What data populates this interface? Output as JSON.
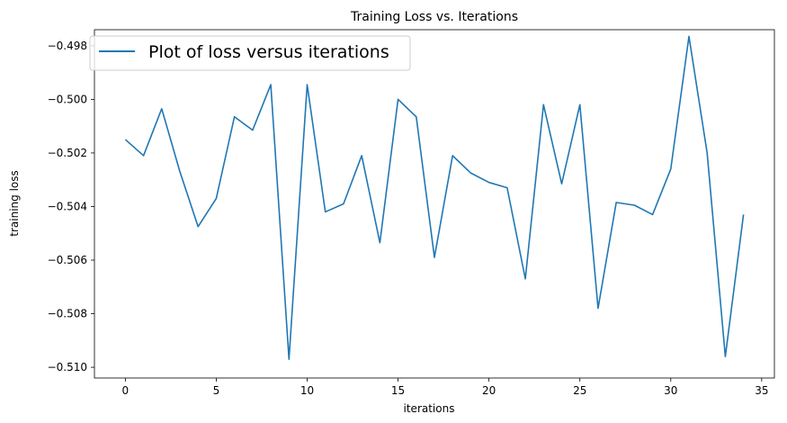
{
  "chart_data": {
    "type": "line",
    "title": "Training Loss vs. Iterations",
    "xlabel": "iterations",
    "ylabel": "training loss",
    "xlim": [
      -1.7,
      35.7
    ],
    "ylim": [
      -0.5104,
      -0.4974
    ],
    "xticks": [
      0,
      5,
      10,
      15,
      20,
      25,
      30,
      35
    ],
    "xtick_labels": [
      "0",
      "5",
      "10",
      "15",
      "20",
      "25",
      "30",
      "35"
    ],
    "yticks": [
      -0.51,
      -0.508,
      -0.506,
      -0.504,
      -0.502,
      -0.5,
      -0.498
    ],
    "ytick_labels": [
      "−0.510",
      "−0.508",
      "−0.506",
      "−0.504",
      "−0.502",
      "−0.500",
      "−0.498"
    ],
    "legend_position": "top-left",
    "grid": false,
    "series": [
      {
        "name": "Plot of loss versus iterations",
        "color": "#1f77b4",
        "x": [
          0,
          1,
          2,
          3,
          4,
          5,
          6,
          7,
          8,
          9,
          10,
          11,
          12,
          13,
          14,
          15,
          16,
          17,
          18,
          19,
          20,
          21,
          22,
          23,
          24,
          25,
          26,
          27,
          28,
          29,
          30,
          31,
          32,
          33,
          34
        ],
        "values": [
          -0.5015,
          -0.5021,
          -0.50035,
          -0.5027,
          -0.50475,
          -0.5037,
          -0.50065,
          -0.50115,
          -0.49945,
          -0.5097,
          -0.49945,
          -0.5042,
          -0.5039,
          -0.5021,
          -0.50535,
          -0.5,
          -0.50065,
          -0.5059,
          -0.5021,
          -0.50275,
          -0.5031,
          -0.5033,
          -0.5067,
          -0.5002,
          -0.50315,
          -0.5002,
          -0.5078,
          -0.50385,
          -0.50395,
          -0.5043,
          -0.5026,
          -0.49765,
          -0.502,
          -0.5096,
          -0.5043
        ]
      }
    ]
  }
}
